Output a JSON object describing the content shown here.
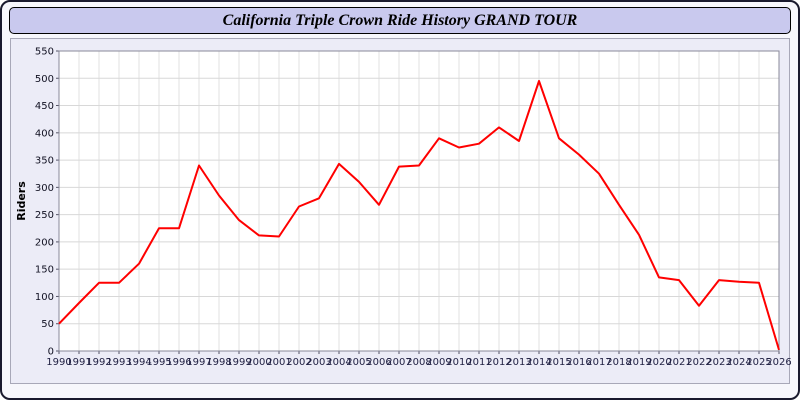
{
  "title": "California Triple Crown Ride History GRAND TOUR",
  "chart_data": {
    "type": "line",
    "title": "California Triple Crown Ride History GRAND TOUR",
    "xlabel": "",
    "ylabel": "Riders",
    "ylim": [
      0,
      550
    ],
    "ytick_step": 50,
    "grid": true,
    "legend_position": "none",
    "x": [
      1990,
      1991,
      1992,
      1993,
      1994,
      1995,
      1996,
      1997,
      1998,
      1999,
      2000,
      2001,
      2002,
      2003,
      2004,
      2005,
      2006,
      2007,
      2008,
      2009,
      2010,
      2011,
      2012,
      2013,
      2014,
      2015,
      2016,
      2017,
      2018,
      2019,
      2020,
      2021,
      2022,
      2023,
      2024,
      2025,
      2026
    ],
    "series": [
      {
        "name": "Riders",
        "color": "#ff0000",
        "values": [
          50,
          88,
          125,
          125,
          160,
          225,
          225,
          340,
          285,
          240,
          212,
          210,
          265,
          280,
          343,
          310,
          268,
          338,
          340,
          390,
          373,
          380,
          410,
          385,
          495,
          390,
          360,
          325,
          268,
          213,
          135,
          130,
          83,
          130,
          127,
          125,
          2
        ]
      }
    ],
    "colors": {
      "plot_background": "#ffffff",
      "panel_background": "#ececf7",
      "grid_h": "#d8d8d8",
      "grid_v": "#e2e2e2",
      "axis": "#888899",
      "tick_label": "#222244",
      "line": "#ff0000"
    }
  }
}
